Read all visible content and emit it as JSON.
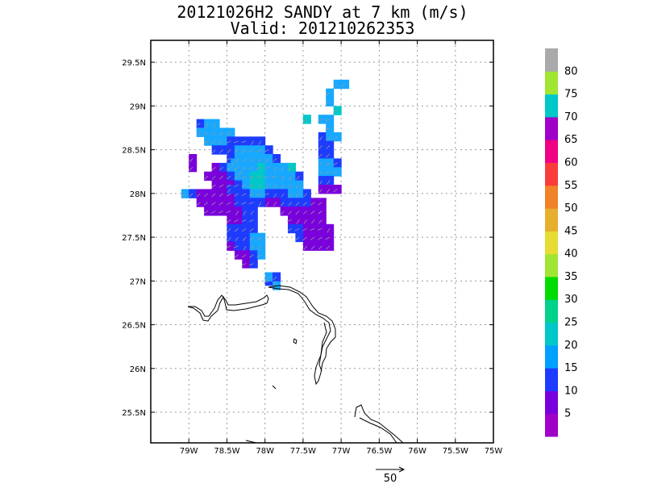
{
  "title": {
    "line1": "20121026H2 SANDY at 7 km (m/s)",
    "line2": "Valid: 201210262353"
  },
  "map": {
    "lat_ticks": [
      "29.5N",
      "29N",
      "28.5N",
      "28N",
      "27.5N",
      "27N",
      "26.5N",
      "26N",
      "25.5N"
    ],
    "lon_ticks": [
      "79W",
      "78.5W",
      "78W",
      "77.5W",
      "77W",
      "76.5W",
      "76W",
      "75.5W",
      "75W"
    ],
    "lon_range": [
      -79.5,
      -75.0
    ],
    "lat_range": [
      25.15,
      29.75
    ],
    "grid": true
  },
  "colorbar": {
    "labels": [
      "5",
      "10",
      "15",
      "20",
      "25",
      "30",
      "35",
      "40",
      "45",
      "50",
      "55",
      "60",
      "65",
      "70",
      "75",
      "80"
    ],
    "colors": [
      "#a000c8",
      "#7800dc",
      "#1e3cff",
      "#00a0ff",
      "#00c8c8",
      "#00d28c",
      "#00dc00",
      "#a0e632",
      "#e6dc32",
      "#e6af2d",
      "#f08228",
      "#fa3c3c",
      "#f00082",
      "#a000c8",
      "#00c8c8",
      "#a0e632",
      "#aaaaaa"
    ]
  },
  "vector_key": {
    "label": "50"
  },
  "wind_cells": [
    [
      -78.85,
      28.8,
      2
    ],
    [
      -78.75,
      28.8,
      3
    ],
    [
      -78.65,
      28.8,
      3
    ],
    [
      -78.85,
      28.7,
      3
    ],
    [
      -78.75,
      28.7,
      3
    ],
    [
      -78.65,
      28.7,
      3
    ],
    [
      -78.55,
      28.7,
      3
    ],
    [
      -78.45,
      28.7,
      3
    ],
    [
      -78.75,
      28.6,
      3
    ],
    [
      -78.65,
      28.6,
      3
    ],
    [
      -78.55,
      28.6,
      3
    ],
    [
      -78.45,
      28.6,
      2
    ],
    [
      -78.35,
      28.6,
      2
    ],
    [
      -78.25,
      28.6,
      2
    ],
    [
      -78.15,
      28.6,
      2
    ],
    [
      -78.05,
      28.6,
      2
    ],
    [
      -78.95,
      28.4,
      1
    ],
    [
      -78.95,
      28.3,
      1
    ],
    [
      -78.65,
      28.5,
      2
    ],
    [
      -78.55,
      28.5,
      2
    ],
    [
      -78.45,
      28.5,
      2
    ],
    [
      -78.35,
      28.5,
      3
    ],
    [
      -78.25,
      28.5,
      3
    ],
    [
      -78.15,
      28.5,
      3
    ],
    [
      -78.05,
      28.5,
      3
    ],
    [
      -77.95,
      28.5,
      2
    ],
    [
      -78.45,
      28.4,
      2
    ],
    [
      -78.35,
      28.4,
      3
    ],
    [
      -78.25,
      28.4,
      3
    ],
    [
      -78.15,
      28.4,
      3
    ],
    [
      -78.05,
      28.4,
      3
    ],
    [
      -77.95,
      28.4,
      3
    ],
    [
      -77.85,
      28.4,
      2
    ],
    [
      -78.65,
      28.3,
      1
    ],
    [
      -78.55,
      28.3,
      2
    ],
    [
      -78.45,
      28.3,
      3
    ],
    [
      -78.35,
      28.3,
      3
    ],
    [
      -78.25,
      28.3,
      3
    ],
    [
      -78.15,
      28.3,
      3
    ],
    [
      -78.05,
      28.3,
      4
    ],
    [
      -77.95,
      28.3,
      3
    ],
    [
      -77.85,
      28.3,
      3
    ],
    [
      -77.75,
      28.3,
      3
    ],
    [
      -77.65,
      28.3,
      4
    ],
    [
      -78.75,
      28.2,
      1
    ],
    [
      -78.65,
      28.2,
      1
    ],
    [
      -78.55,
      28.2,
      1
    ],
    [
      -78.45,
      28.2,
      2
    ],
    [
      -78.35,
      28.2,
      3
    ],
    [
      -78.25,
      28.2,
      3
    ],
    [
      -78.15,
      28.2,
      4
    ],
    [
      -78.05,
      28.2,
      4
    ],
    [
      -77.95,
      28.2,
      3
    ],
    [
      -77.85,
      28.2,
      3
    ],
    [
      -77.75,
      28.2,
      3
    ],
    [
      -77.65,
      28.2,
      3
    ],
    [
      -77.55,
      28.2,
      2
    ],
    [
      -79.05,
      28.0,
      3
    ],
    [
      -78.95,
      28.0,
      2
    ],
    [
      -78.85,
      28.0,
      1
    ],
    [
      -78.75,
      28.0,
      1
    ],
    [
      -78.65,
      28.1,
      1
    ],
    [
      -78.55,
      28.1,
      1
    ],
    [
      -78.45,
      28.1,
      1
    ],
    [
      -78.35,
      28.1,
      2
    ],
    [
      -78.25,
      28.1,
      3
    ],
    [
      -78.15,
      28.1,
      4
    ],
    [
      -78.05,
      28.1,
      4
    ],
    [
      -77.95,
      28.1,
      3
    ],
    [
      -77.85,
      28.1,
      3
    ],
    [
      -77.75,
      28.1,
      3
    ],
    [
      -77.65,
      28.1,
      3
    ],
    [
      -77.55,
      28.1,
      3
    ],
    [
      -78.65,
      28.0,
      1
    ],
    [
      -78.55,
      28.0,
      1
    ],
    [
      -78.45,
      28.0,
      1
    ],
    [
      -78.35,
      28.0,
      2
    ],
    [
      -78.25,
      28.0,
      2
    ],
    [
      -78.15,
      28.0,
      3
    ],
    [
      -78.05,
      28.0,
      3
    ],
    [
      -77.95,
      28.0,
      2
    ],
    [
      -77.85,
      28.0,
      2
    ],
    [
      -77.75,
      28.0,
      2
    ],
    [
      -77.65,
      28.0,
      3
    ],
    [
      -77.55,
      28.0,
      3
    ],
    [
      -77.45,
      28.0,
      2
    ],
    [
      -78.85,
      27.9,
      1
    ],
    [
      -78.75,
      27.9,
      1
    ],
    [
      -78.65,
      27.9,
      1
    ],
    [
      -78.55,
      27.9,
      1
    ],
    [
      -78.45,
      27.9,
      1
    ],
    [
      -78.35,
      27.9,
      2
    ],
    [
      -78.25,
      27.9,
      2
    ],
    [
      -78.15,
      27.9,
      2
    ],
    [
      -78.05,
      27.9,
      2
    ],
    [
      -77.95,
      27.9,
      1
    ],
    [
      -77.85,
      27.9,
      1
    ],
    [
      -77.75,
      27.9,
      2
    ],
    [
      -77.65,
      27.9,
      2
    ],
    [
      -77.55,
      27.9,
      2
    ],
    [
      -77.45,
      27.9,
      2
    ],
    [
      -77.35,
      27.9,
      1
    ],
    [
      -77.25,
      27.9,
      1
    ],
    [
      -78.75,
      27.8,
      1
    ],
    [
      -78.65,
      27.8,
      1
    ],
    [
      -78.55,
      27.8,
      1
    ],
    [
      -78.45,
      27.8,
      1
    ],
    [
      -78.35,
      27.8,
      1
    ],
    [
      -78.25,
      27.8,
      2
    ],
    [
      -78.15,
      27.8,
      2
    ],
    [
      -77.75,
      27.8,
      1
    ],
    [
      -77.65,
      27.8,
      1
    ],
    [
      -77.55,
      27.8,
      1
    ],
    [
      -77.45,
      27.8,
      1
    ],
    [
      -77.35,
      27.8,
      1
    ],
    [
      -77.25,
      27.8,
      1
    ],
    [
      -78.45,
      27.7,
      1
    ],
    [
      -78.35,
      27.7,
      1
    ],
    [
      -78.25,
      27.7,
      2
    ],
    [
      -78.15,
      27.7,
      2
    ],
    [
      -77.65,
      27.7,
      1
    ],
    [
      -77.55,
      27.7,
      1
    ],
    [
      -77.45,
      27.7,
      1
    ],
    [
      -77.35,
      27.7,
      1
    ],
    [
      -77.25,
      27.7,
      1
    ],
    [
      -78.45,
      27.6,
      2
    ],
    [
      -78.35,
      27.6,
      2
    ],
    [
      -78.25,
      27.6,
      2
    ],
    [
      -78.15,
      27.6,
      2
    ],
    [
      -77.65,
      27.6,
      2
    ],
    [
      -77.55,
      27.6,
      2
    ],
    [
      -77.45,
      27.6,
      1
    ],
    [
      -77.35,
      27.6,
      1
    ],
    [
      -77.25,
      27.6,
      1
    ],
    [
      -77.15,
      27.6,
      1
    ],
    [
      -78.45,
      27.5,
      2
    ],
    [
      -78.35,
      27.5,
      2
    ],
    [
      -78.25,
      27.5,
      2
    ],
    [
      -78.15,
      27.5,
      3
    ],
    [
      -78.05,
      27.5,
      3
    ],
    [
      -77.55,
      27.5,
      2
    ],
    [
      -77.45,
      27.5,
      1
    ],
    [
      -77.35,
      27.5,
      1
    ],
    [
      -77.25,
      27.5,
      1
    ],
    [
      -77.15,
      27.5,
      1
    ],
    [
      -78.45,
      27.4,
      1
    ],
    [
      -78.35,
      27.4,
      2
    ],
    [
      -78.25,
      27.4,
      2
    ],
    [
      -78.15,
      27.4,
      3
    ],
    [
      -78.05,
      27.4,
      3
    ],
    [
      -77.45,
      27.4,
      1
    ],
    [
      -77.35,
      27.4,
      1
    ],
    [
      -77.25,
      27.4,
      1
    ],
    [
      -77.15,
      27.4,
      1
    ],
    [
      -78.35,
      27.3,
      1
    ],
    [
      -78.25,
      27.3,
      1
    ],
    [
      -78.15,
      27.3,
      2
    ],
    [
      -78.05,
      27.3,
      3
    ],
    [
      -78.25,
      27.2,
      1
    ],
    [
      -78.15,
      27.2,
      2
    ],
    [
      -77.95,
      27.0,
      2
    ],
    [
      -77.85,
      27.0,
      2
    ],
    [
      -77.85,
      26.95,
      3
    ],
    [
      -77.95,
      27.05,
      3
    ],
    [
      -77.85,
      27.05,
      2
    ],
    [
      -77.45,
      28.85,
      4
    ],
    [
      -76.95,
      29.25,
      3
    ],
    [
      -77.05,
      29.25,
      3
    ],
    [
      -77.15,
      29.15,
      3
    ],
    [
      -77.15,
      29.05,
      3
    ],
    [
      -77.05,
      28.95,
      4
    ],
    [
      -77.25,
      28.85,
      3
    ],
    [
      -77.15,
      28.85,
      3
    ],
    [
      -77.15,
      28.75,
      3
    ],
    [
      -77.25,
      28.65,
      2
    ],
    [
      -77.15,
      28.65,
      3
    ],
    [
      -77.05,
      28.65,
      3
    ],
    [
      -77.25,
      28.55,
      2
    ],
    [
      -77.15,
      28.55,
      2
    ],
    [
      -77.25,
      28.45,
      2
    ],
    [
      -77.15,
      28.45,
      2
    ],
    [
      -77.25,
      28.35,
      3
    ],
    [
      -77.15,
      28.35,
      3
    ],
    [
      -77.05,
      28.35,
      2
    ],
    [
      -77.25,
      28.25,
      3
    ],
    [
      -77.15,
      28.25,
      3
    ],
    [
      -77.05,
      28.25,
      3
    ],
    [
      -77.25,
      28.15,
      2
    ],
    [
      -77.15,
      28.15,
      2
    ],
    [
      -77.25,
      28.05,
      1
    ],
    [
      -77.15,
      28.05,
      1
    ],
    [
      -78.45,
      28.05,
      2
    ],
    [
      -78.4,
      28.35,
      3
    ],
    [
      -78.3,
      28.25,
      3
    ],
    [
      -77.05,
      28.05,
      1
    ]
  ]
}
